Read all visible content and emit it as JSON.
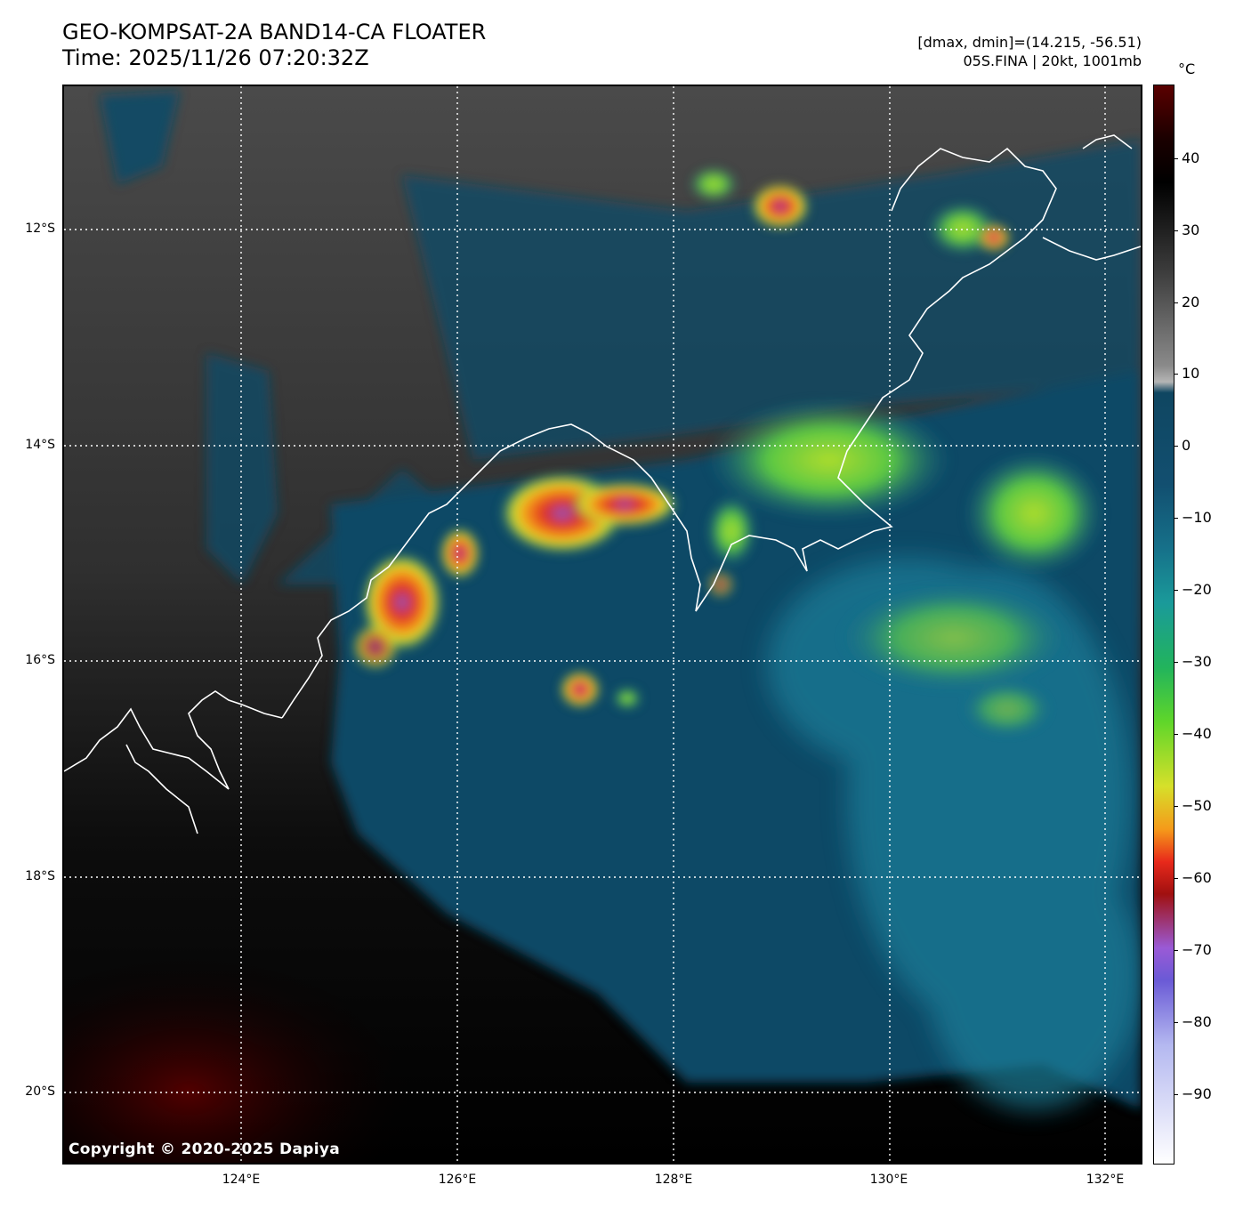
{
  "header": {
    "title_line1": "GEO-KOMPSAT-2A BAND14-CA FLOATER",
    "title_line2": "Time: 2025/11/26 07:20:32Z",
    "range_line": "[dmax, dmin]=(14.215, -56.51)",
    "storm_line": "05S.FINA | 20kt, 1001mb"
  },
  "map": {
    "lat_labels": [
      "12°S",
      "14°S",
      "16°S",
      "18°S",
      "20°S"
    ],
    "lon_labels": [
      "124°E",
      "126°E",
      "128°E",
      "130°E",
      "132°E"
    ],
    "copyright": "Copyright © 2020-2025 Dapiya",
    "extent": {
      "lon_min": 122.35,
      "lon_max": 132.35,
      "lat_min": -20.65,
      "lat_max": -10.65
    }
  },
  "colorbar": {
    "unit": "°C",
    "ticks": [
      "40",
      "30",
      "20",
      "10",
      "0",
      "−10",
      "−20",
      "−30",
      "−40",
      "−50",
      "−60",
      "−70",
      "−80",
      "−90"
    ],
    "tick_values": [
      40,
      30,
      20,
      10,
      0,
      -10,
      -20,
      -30,
      -40,
      -50,
      -60,
      -70,
      -80,
      -90
    ],
    "range": [
      49,
      -100
    ]
  },
  "colors": {
    "cold_top": "#e8291b",
    "very_cold": "#8a5cd6",
    "convective": "#9be22c",
    "ocean_cloud": "#0f4661",
    "land_warm": "#050505"
  }
}
